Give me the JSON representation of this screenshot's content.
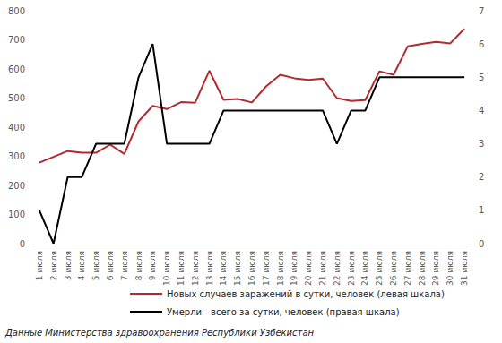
{
  "chart_data": {
    "type": "line",
    "source": "Данные Министерства здравоохранения Республики Узбекистан",
    "categories": [
      "1 июля",
      "2 июля",
      "3 июля",
      "4 июля",
      "5 июля",
      "6 июля",
      "7 июля",
      "8 июля",
      "9 июля",
      "10 июля",
      "11 июля",
      "12 июля",
      "13 июля",
      "14 июля",
      "15 июля",
      "16 июля",
      "17 июля",
      "18 июля",
      "19 июля",
      "20 июля",
      "21 июля",
      "22 июля",
      "23 июля",
      "24 июля",
      "25 июля",
      "26 июля",
      "27 июля",
      "28 июля",
      "29 июля",
      "30 июля",
      "31 июля"
    ],
    "series": [
      {
        "name": "Новых случаев заражений в сутки, человек (левая шкала)",
        "color": "#b22a2e",
        "values": [
          278,
          298,
          318,
          312,
          312,
          340,
          308,
          420,
          473,
          462,
          486,
          484,
          594,
          494,
          497,
          485,
          540,
          580,
          568,
          562,
          567,
          500,
          490,
          493,
          592,
          580,
          678,
          686,
          693,
          688,
          738
        ]
      },
      {
        "name": "Умерли - всего за сутки, человек (правая шкала)",
        "color": "#000000",
        "axis": "y2",
        "values": [
          1,
          0,
          2,
          2,
          3,
          3,
          3,
          5,
          6,
          3,
          3,
          3,
          3,
          4,
          4,
          4,
          4,
          4,
          4,
          4,
          4,
          3,
          4,
          4,
          5,
          5,
          5,
          5,
          5,
          5,
          5
        ]
      }
    ],
    "ylim": [
      0,
      800
    ],
    "yticks": [
      0,
      100,
      200,
      300,
      400,
      500,
      600,
      700,
      800
    ],
    "y2lim": [
      0,
      7
    ],
    "y2ticks": [
      0,
      1,
      2,
      3,
      4,
      5,
      6,
      7
    ],
    "grid": false,
    "legend": "bottom"
  }
}
